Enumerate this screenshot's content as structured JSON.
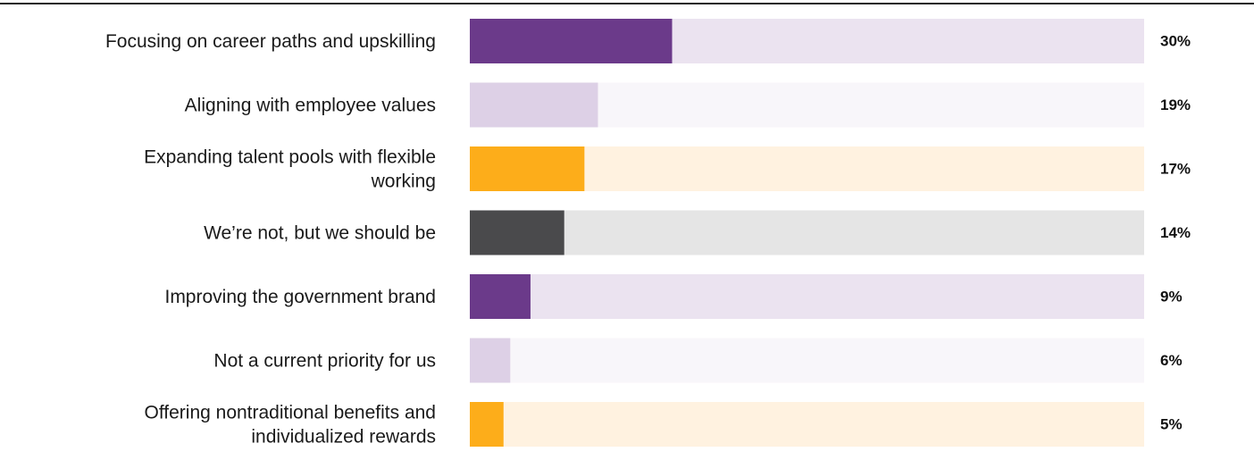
{
  "chart_data": {
    "type": "bar",
    "orientation": "horizontal",
    "xlim": [
      0,
      100
    ],
    "grid": false,
    "legend": "none",
    "categories": [
      [
        "Focusing on career paths and upskilling"
      ],
      [
        "Aligning with employee values"
      ],
      [
        "Expanding talent pools with flexible",
        "working"
      ],
      [
        "We’re not, but we should be"
      ],
      [
        "Improving the government brand"
      ],
      [
        "Not a current priority for us"
      ],
      [
        "Offering nontraditional benefits and",
        "individualized rewards"
      ]
    ],
    "values": [
      30,
      19,
      17,
      14,
      9,
      6,
      5
    ],
    "value_labels": [
      "30%",
      "19%",
      "17%",
      "14%",
      "9%",
      "6%",
      "5%"
    ],
    "colors": {
      "bar_fill": [
        "#6b3a8a",
        "#ddd0e6",
        "#fdad1a",
        "#4a4a4c",
        "#6b3a8a",
        "#ddd0e6",
        "#fdad1a"
      ],
      "track_fill": [
        "#ebe3f0",
        "#f8f6fa",
        "#fff2e0",
        "#e5e5e5",
        "#ebe3f0",
        "#f8f6fa",
        "#fff2e0"
      ],
      "top_rule": "#222222"
    }
  }
}
